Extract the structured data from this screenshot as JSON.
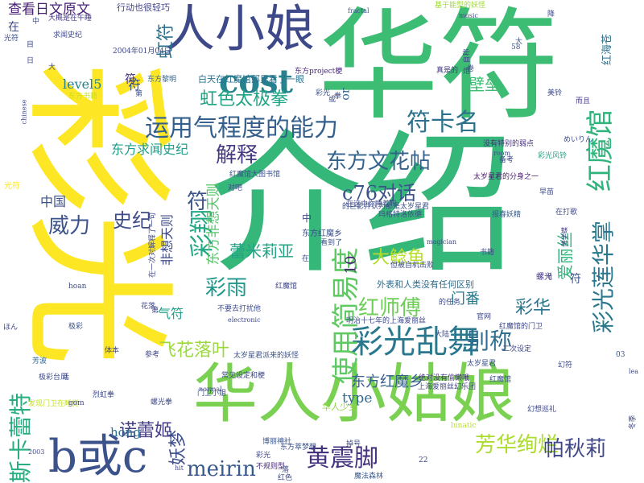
{
  "words": [
    {
      "text": "介绍",
      "color": "#35b779"
    },
    {
      "text": "华符",
      "color": "#3dbc74"
    },
    {
      "text": "彩光",
      "color": "#fde725"
    },
    {
      "text": "华人小姑娘",
      "color": "#7ad151"
    },
    {
      "text": "人小娘",
      "color": "#3e4989"
    },
    {
      "text": "cost",
      "color": "#26828e"
    },
    {
      "text": "b或c",
      "color": "#3b528b"
    },
    {
      "text": "彩光乱舞",
      "color": "#2a788e"
    },
    {
      "text": "运用气程度的能力",
      "color": "#35608d"
    },
    {
      "text": "符卡名",
      "color": "#2c718e"
    },
    {
      "text": "红魔馆",
      "color": "#2fb47c"
    },
    {
      "text": "彩光莲华掌",
      "color": "#2a788e"
    },
    {
      "text": "使用简易度",
      "color": "#5ec962"
    },
    {
      "text": "东方文花帖",
      "color": "#33638d"
    },
    {
      "text": "虹色太极拳",
      "color": "#20a486"
    },
    {
      "text": "解释",
      "color": "#443983"
    },
    {
      "text": "c76对话",
      "color": "#3b528b"
    },
    {
      "text": "彩翔",
      "color": "#22a884"
    },
    {
      "text": "红师傅",
      "color": "#6ece58"
    },
    {
      "text": "彩雨",
      "color": "#1f988b"
    },
    {
      "text": "别称",
      "color": "#2f6c8e"
    },
    {
      "text": "黄震脚",
      "color": "#46337f"
    },
    {
      "text": "芳华绚烂",
      "color": "#addc30"
    },
    {
      "text": "帕秋莉",
      "color": "#3f4788"
    },
    {
      "text": "斯卡蕾特",
      "color": "#28ae80"
    },
    {
      "text": "meirin",
      "color": "#38598c"
    },
    {
      "text": "威力",
      "color": "#3b528b"
    },
    {
      "text": "史纪",
      "color": "#3e4c8a"
    },
    {
      "text": "符",
      "color": "#3a548c"
    },
    {
      "text": "虹符",
      "color": "#2c728e"
    },
    {
      "text": "飞花落叶",
      "color": "#9bd93c"
    },
    {
      "text": "东方红魔乡",
      "color": "#34608d"
    },
    {
      "text": "妖梦",
      "color": "#3d4e8a"
    },
    {
      "text": "诺蕾姬",
      "color": "#433e85"
    },
    {
      "text": "大鲶鱼",
      "color": "#b5de2b"
    },
    {
      "text": "彩华",
      "color": "#2a768e"
    },
    {
      "text": "蕾米莉亚",
      "color": "#20a486"
    },
    {
      "text": "壁垒",
      "color": "#3fbc73"
    },
    {
      "text": "爱丽丝",
      "color": "#2fb47c"
    },
    {
      "text": "东方求闻史纪",
      "color": "#1f9e89"
    },
    {
      "text": "查看日文原文",
      "color": "#482173"
    },
    {
      "text": "type",
      "color": "#31688e"
    },
    {
      "text": "hong",
      "color": "#2c718e"
    },
    {
      "text": "level5",
      "color": "#277f8e"
    },
    {
      "text": "东方非想天则",
      "color": "#54c568"
    },
    {
      "text": "非想天则",
      "color": "#3e4a89"
    },
    {
      "text": "中国",
      "color": "#3b528b"
    },
    {
      "text": "门番",
      "color": "#29798e"
    },
    {
      "text": "气符",
      "color": "#1f9e89"
    },
    {
      "text": "10",
      "color": "#481f70"
    },
    {
      "text": "白天在红魔馆那里看了一眼",
      "color": "#2c728e"
    },
    {
      "text": "外表和人类没有任何区别",
      "color": "#2e6d8e"
    },
    {
      "text": "行动也很轻巧",
      "color": "#414487"
    },
    {
      "text": "红海苍",
      "color": "#2c728e"
    },
    {
      "text": "在",
      "color": "#3e4a89"
    },
    {
      "text": "or",
      "color": "#31678e"
    },
    {
      "text": "中",
      "color": "#3e4989"
    },
    {
      "text": "而且",
      "color": "#443a83"
    },
    {
      "text": "东方红魔乡",
      "color": "#3c4f8a"
    },
    {
      "text": "华人少女",
      "color": "#8fd744"
    },
    {
      "text": "真是的",
      "color": "#443983"
    },
    {
      "text": "符",
      "color": "#472d7b"
    },
    {
      "text": "螺光",
      "color": "#453781"
    },
    {
      "text": "2004年01月04日",
      "color": "#3f4889"
    },
    {
      "text": "东方黎明",
      "color": "#31678e"
    },
    {
      "text": "没有特别的弱点",
      "color": "#46307e"
    },
    {
      "text": "彩光风铃",
      "color": "#20a386"
    },
    {
      "text": "太岁星君的分身之一",
      "color": "#481a6c"
    },
    {
      "text": "玛格特洛依德",
      "color": "#3d4d8a"
    },
    {
      "text": "报春妖精",
      "color": "#375b8d"
    },
    {
      "text": "降华蝶",
      "color": "#433d84"
    },
    {
      "text": "不要去打扰他",
      "color": "#3e4c8a"
    },
    {
      "text": "但被自机击败",
      "color": "#3e4a89"
    },
    {
      "text": "常见设定和梗",
      "color": "#3f4788"
    },
    {
      "text": "绝对没有偷懒哦",
      "color": "#46327e"
    },
    {
      "text": "东方萃梦想",
      "color": "#3b528b"
    },
    {
      "text": "博丽神社",
      "color": "#39568c"
    },
    {
      "text": "魔法森林",
      "color": "#38588c"
    },
    {
      "text": "不规则型",
      "color": "#482979"
    },
    {
      "text": "烈虹拳",
      "color": "#3e4a89"
    },
    {
      "text": "极彩台风",
      "color": "#3e4989"
    },
    {
      "text": "发现门卫在睡觉",
      "color": "#c2df23"
    },
    {
      "text": "芳波",
      "color": "#32658e"
    },
    {
      "text": "话",
      "color": "#3c4f8a"
    },
    {
      "text": "极彩",
      "color": "#3b528b"
    },
    {
      "text": "hoan",
      "color": "#3e4c8a"
    },
    {
      "text": "gom",
      "color": "#3e4989"
    },
    {
      "text": "求闻史纪",
      "color": "#3f4889"
    },
    {
      "text": "大概是在午睡",
      "color": "#443983"
    },
    {
      "text": "基于能型的妖怪",
      "color": "#a2da37"
    },
    {
      "text": "2003",
      "color": "#3f4788"
    },
    {
      "text": "花落",
      "color": "#3f4889"
    },
    {
      "text": "二次设定",
      "color": "#3f4788"
    },
    {
      "text": "在打歌",
      "color": "#3e4a89"
    },
    {
      "text": "早苗",
      "color": "#3e4989"
    },
    {
      "text": "magician",
      "color": "#3e4c8a"
    },
    {
      "text": "书籍",
      "color": "#3e4c8a"
    },
    {
      "text": "看到了",
      "color": "#3b528b"
    },
    {
      "text": "红魔馆大图书馆",
      "color": "#3b528b"
    },
    {
      "text": "门卫小姐",
      "color": "#3b528b"
    },
    {
      "text": "螺光拳",
      "color": "#3e4a89"
    },
    {
      "text": "体本",
      "color": "#3f4889"
    },
    {
      "text": "对吧",
      "color": "#3f4889"
    },
    {
      "text": "东方project梗",
      "color": "#482878"
    },
    {
      "text": "东方书籍",
      "color": "#c8e020"
    },
    {
      "text": "红魔馆的门卫",
      "color": "#3e4989"
    },
    {
      "text": "幻想巡礼",
      "color": "#3f4889"
    },
    {
      "text": "上海爱丽丝幻乐团",
      "color": "#3f4889"
    },
    {
      "text": "符",
      "color": "#3b528b"
    },
    {
      "text": "符",
      "color": "#3b528b"
    },
    {
      "text": "降",
      "color": "#3e4c8a"
    },
    {
      "text": "或",
      "color": "#3e4a89"
    },
    {
      "text": "掉号",
      "color": "#3e4a89"
    },
    {
      "text": "炮",
      "color": "#3e4c8a"
    },
    {
      "text": "彩光",
      "color": "#3b528b"
    },
    {
      "text": "红色",
      "color": "#3f4889"
    },
    {
      "text": "彩光",
      "color": "#3f4889"
    },
    {
      "text": "光符",
      "color": "#fde725"
    },
    {
      "text": "22",
      "color": "#3e4989"
    },
    {
      "text": "8",
      "color": "#3e4a89"
    },
    {
      "text": "03",
      "color": "#3b528b"
    },
    {
      "text": "第",
      "color": "#3b528b"
    },
    {
      "text": "大",
      "color": "#3b528b"
    },
    {
      "text": "拳",
      "color": "#3e4a89"
    },
    {
      "text": "美铃",
      "color": "#3e4c8a"
    },
    {
      "text": "卷",
      "color": "#3e4989"
    },
    {
      "text": "幻符",
      "color": "#3e4989"
    },
    {
      "text": "落",
      "color": "#3e4a89"
    },
    {
      "text": "在一次对解释了一句",
      "color": "#3f4889"
    },
    {
      "text": "lunatic",
      "color": "#b8de29"
    },
    {
      "text": "electronic",
      "color": "#3e4a89"
    },
    {
      "text": "normal",
      "color": "#3e4989"
    },
    {
      "text": "room",
      "color": "#3e4c8a"
    },
    {
      "text": "fractal",
      "color": "#3b528b"
    },
    {
      "text": "music",
      "color": "#3e4a89"
    },
    {
      "text": "lea",
      "color": "#3e4a89"
    },
    {
      "text": "chinese",
      "color": "#3e4989"
    },
    {
      "text": "hit",
      "color": "#3f4889"
    },
    {
      "text": "めいりん",
      "color": "#3e4c8a"
    },
    {
      "text": "ほん",
      "color": "#3e4a89"
    },
    {
      "text": "备考",
      "color": "#3e4989"
    },
    {
      "text": "参考",
      "color": "#3f4889"
    },
    {
      "text": "冬季",
      "color": "#3e4a89"
    },
    {
      "text": "红魔馆",
      "color": "#3e4989"
    },
    {
      "text": "的任务",
      "color": "#3e4c8a"
    },
    {
      "text": "官网",
      "color": "#3f4889"
    },
    {
      "text": "红魔馆",
      "color": "#3b528b"
    },
    {
      "text": "大陆",
      "color": "#3e4a89"
    },
    {
      "text": "太岁星君",
      "color": "#3b528b"
    },
    {
      "text": "的巨影并认为那是太岁星君",
      "color": "#3b528b"
    },
    {
      "text": "在这中你睡着吗",
      "color": "#3e4a89"
    },
    {
      "text": "太岁星君派来的妖怪",
      "color": "#3b528b"
    },
    {
      "text": "明治十七年的上海爱丽丝",
      "color": "#3e4989"
    },
    {
      "text": "自称",
      "color": "#3e4a89"
    },
    {
      "text": "在",
      "color": "#3e4c8a"
    },
    {
      "text": "中",
      "color": "#3e4c8a"
    },
    {
      "text": "大",
      "color": "#3e4a89"
    },
    {
      "text": "58",
      "color": "#3b528b"
    },
    {
      "text": "日",
      "color": "#3e4a89"
    },
    {
      "text": "目",
      "color": "#3e4989"
    },
    {
      "text": "光符",
      "color": "#3e4c8a"
    },
    {
      "text": "第",
      "color": "#3e4989"
    }
  ]
}
